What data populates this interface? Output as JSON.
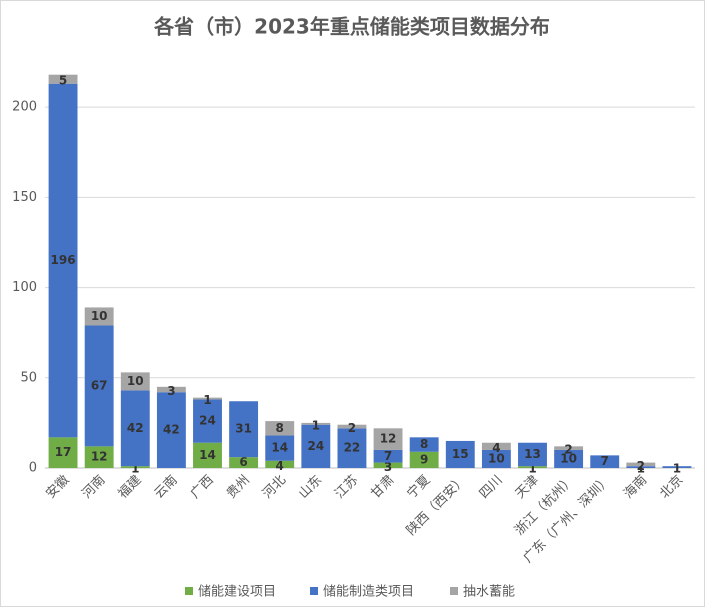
{
  "chart_data": {
    "type": "stacked-bar",
    "title": "各省（市）2023年重点储能类项目数据分布",
    "categories": [
      "安徽",
      "河南",
      "福建",
      "云南",
      "广西",
      "贵州",
      "河北",
      "山东",
      "江苏",
      "甘肃",
      "宁夏",
      "陕西（西安）",
      "四川",
      "天津",
      "浙江（杭州）",
      "广东（广州、深圳）",
      "海南",
      "北京"
    ],
    "series": [
      {
        "name": "储能建设项目",
        "color": "#70ad47",
        "values": [
          17,
          12,
          1,
          null,
          14,
          6,
          4,
          null,
          null,
          3,
          9,
          null,
          null,
          1,
          null,
          null,
          null,
          null
        ]
      },
      {
        "name": "储能制造类项目",
        "color": "#4472c4",
        "values": [
          196,
          67,
          42,
          42,
          24,
          31,
          14,
          24,
          22,
          7,
          8,
          15,
          10,
          13,
          10,
          7,
          1,
          1
        ]
      },
      {
        "name": "抽水蓄能",
        "color": "#a5a5a5",
        "values": [
          5,
          10,
          10,
          3,
          1,
          null,
          8,
          1,
          2,
          12,
          null,
          null,
          4,
          null,
          2,
          null,
          2,
          null
        ]
      }
    ],
    "ylim": [
      0,
      240
    ],
    "yticks": [
      0,
      50,
      100,
      150,
      200
    ],
    "grid": true,
    "legend": "bottom"
  }
}
